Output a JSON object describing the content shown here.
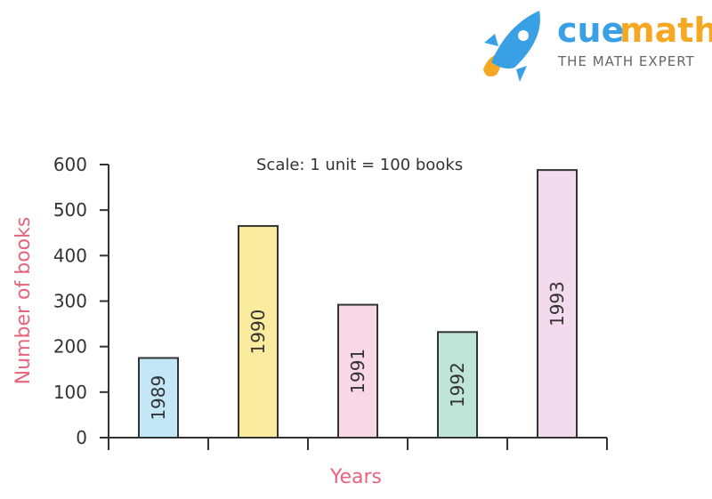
{
  "logo": {
    "word_part1": "cue",
    "word_part2": "math",
    "tagline": "THE MATH EXPERT",
    "color_part1": "#3aa0e6",
    "color_part2": "#f7a823",
    "icon": "rocket-icon"
  },
  "chart_data": {
    "type": "bar",
    "annotation": "Scale: 1 unit = 100 books",
    "xlabel": "Years",
    "ylabel": "Number of books",
    "ylim": [
      0,
      600
    ],
    "yticks": [
      0,
      100,
      200,
      300,
      400,
      500,
      600
    ],
    "ytick_labels": [
      "0",
      "100",
      "200",
      "300",
      "400",
      "500",
      "600"
    ],
    "categories": [
      "1989",
      "1990",
      "1991",
      "1992",
      "1993"
    ],
    "values": [
      175,
      465,
      292,
      232,
      588
    ],
    "bar_colors": [
      "#c3e7f7",
      "#fbeb9e",
      "#f9d7e6",
      "#bfe5d8",
      "#f1dbec"
    ],
    "grid": false,
    "axis_title_color": "#e8647d",
    "axis_color": "#333333"
  }
}
